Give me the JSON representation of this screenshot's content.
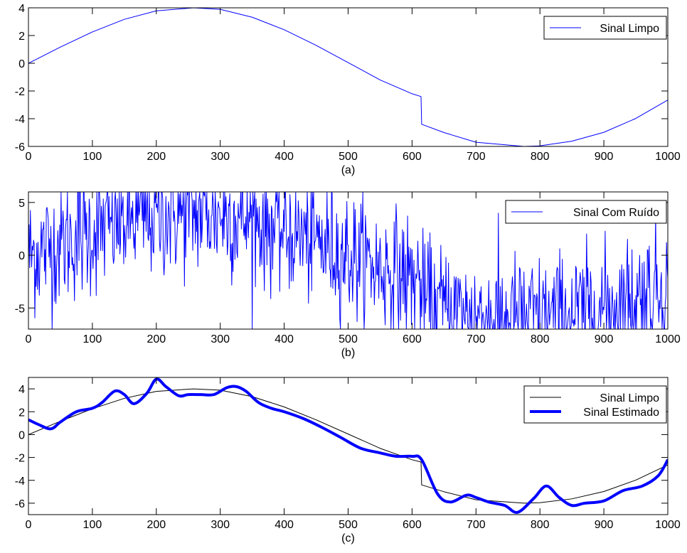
{
  "chart_data": [
    {
      "type": "line",
      "xlabel": "(a)",
      "xlim": [
        0,
        1000
      ],
      "ylim": [
        -6,
        4
      ],
      "xticks": [
        0,
        100,
        200,
        300,
        400,
        500,
        600,
        700,
        800,
        900,
        1000
      ],
      "yticks": [
        -6,
        -4,
        -2,
        0,
        2,
        4
      ],
      "legend_position": "top-right",
      "series": [
        {
          "name": "Sinal Limpo",
          "color": "#0000ff",
          "x": [
            0,
            50,
            100,
            150,
            200,
            258,
            300,
            350,
            400,
            450,
            500,
            550,
            600,
            614,
            615,
            650,
            700,
            775,
            800,
            850,
            900,
            950,
            1000
          ],
          "y": [
            0,
            1.17,
            2.26,
            3.17,
            3.78,
            4.0,
            3.89,
            3.32,
            2.42,
            1.29,
            0.05,
            -1.2,
            -2.2,
            -2.4,
            -4.4,
            -5.0,
            -5.7,
            -6.0,
            -5.96,
            -5.62,
            -4.98,
            -3.98,
            -2.65
          ]
        }
      ]
    },
    {
      "type": "line",
      "xlabel": "(b)",
      "xlim": [
        0,
        1000
      ],
      "ylim": [
        -7,
        6
      ],
      "xticks": [
        0,
        100,
        200,
        300,
        400,
        500,
        600,
        700,
        800,
        900,
        1000
      ],
      "yticks": [
        -5,
        0,
        5
      ],
      "legend_position": "top-right",
      "series": [
        {
          "name": "Sinal Com Ruído",
          "color": "#0000ff",
          "x_range": [
            0,
            1000
          ],
          "description_noise_std": 3.0,
          "underlying": "clean signal plus gaussian noise, clipped to axis limits"
        }
      ]
    },
    {
      "type": "line",
      "xlabel": "(c)",
      "xlim": [
        0,
        1000
      ],
      "ylim": [
        -7,
        5
      ],
      "xticks": [
        0,
        100,
        200,
        300,
        400,
        500,
        600,
        700,
        800,
        900,
        1000
      ],
      "yticks": [
        -6,
        -4,
        -2,
        0,
        2,
        4
      ],
      "legend_position": "top-right",
      "series": [
        {
          "name": "Sinal Limpo",
          "color": "#000000",
          "x": [
            0,
            50,
            100,
            150,
            200,
            258,
            300,
            350,
            400,
            450,
            500,
            550,
            600,
            614,
            615,
            650,
            700,
            775,
            800,
            850,
            900,
            950,
            1000
          ],
          "y": [
            0,
            1.17,
            2.26,
            3.17,
            3.78,
            4.0,
            3.89,
            3.32,
            2.42,
            1.29,
            0.05,
            -1.2,
            -2.2,
            -2.4,
            -4.4,
            -5.0,
            -5.7,
            -6.0,
            -5.96,
            -5.62,
            -4.98,
            -3.98,
            -2.65
          ]
        },
        {
          "name": "Sinal Estimado",
          "color": "#0000ff",
          "x": [
            0,
            15,
            35,
            50,
            75,
            100,
            115,
            135,
            150,
            165,
            185,
            200,
            215,
            235,
            250,
            270,
            290,
            310,
            325,
            340,
            360,
            380,
            400,
            430,
            460,
            490,
            520,
            550,
            575,
            600,
            615,
            640,
            660,
            685,
            700,
            720,
            745,
            765,
            790,
            810,
            830,
            850,
            870,
            900,
            930,
            960,
            985,
            1000
          ],
          "y": [
            1.3,
            0.9,
            0.5,
            1.1,
            2.0,
            2.3,
            2.8,
            3.8,
            3.5,
            2.7,
            3.6,
            4.85,
            4.2,
            3.4,
            3.5,
            3.5,
            3.5,
            4.1,
            4.2,
            3.8,
            2.8,
            2.3,
            2.0,
            1.4,
            0.6,
            -0.3,
            -1.2,
            -1.6,
            -1.9,
            -1.9,
            -2.2,
            -5.2,
            -5.9,
            -5.3,
            -5.5,
            -5.9,
            -6.2,
            -6.8,
            -5.6,
            -4.5,
            -5.5,
            -6.2,
            -6.0,
            -5.8,
            -4.9,
            -4.5,
            -3.6,
            -2.2
          ]
        }
      ]
    }
  ]
}
